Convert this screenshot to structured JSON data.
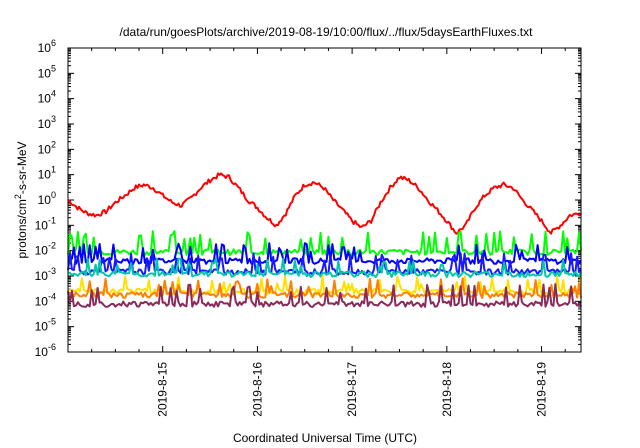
{
  "chart_data": {
    "type": "line",
    "title": "/data/run/goesPlots/archive/2019-08-19/10:00/flux/../flux/5daysEarthFluxes.txt",
    "xlabel": "Coordinated Universal Time (UTC)",
    "ylabel_parts": [
      "protons/cm",
      "2",
      "-s-sr-MeV"
    ],
    "y_scale": "log",
    "ylim": [
      1e-06,
      1000000
    ],
    "y_ticks": [
      {
        "exp": "-6"
      },
      {
        "exp": "-5"
      },
      {
        "exp": "-4"
      },
      {
        "exp": "-3"
      },
      {
        "exp": "-2"
      },
      {
        "exp": "-1"
      },
      {
        "exp": "0"
      },
      {
        "exp": "1"
      },
      {
        "exp": "2"
      },
      {
        "exp": "3"
      },
      {
        "exp": "4"
      },
      {
        "exp": "5"
      },
      {
        "exp": "6"
      }
    ],
    "y_tick_base": "10",
    "xlim": [
      "2019-08-14 00:00",
      "2019-08-19 10:00"
    ],
    "x_ticks": [
      "2019-8-15",
      "2019-8-16",
      "2019-8-17",
      "2019-8-18",
      "2019-8-19"
    ],
    "grid": false,
    "legend": "none",
    "series": [
      {
        "color": "#ff0000",
        "x_days": [
          14.0,
          14.1,
          14.2,
          14.3,
          14.4,
          14.5,
          14.6,
          14.7,
          14.8,
          14.9,
          15.0,
          15.1,
          15.2,
          15.3,
          15.4,
          15.5,
          15.6,
          15.7,
          15.8,
          15.9,
          16.0,
          16.1,
          16.2,
          16.3,
          16.4,
          16.5,
          16.6,
          16.7,
          16.8,
          16.9,
          17.0,
          17.1,
          17.2,
          17.3,
          17.4,
          17.5,
          17.6,
          17.7,
          17.8,
          17.9,
          18.0,
          18.1,
          18.2,
          18.3,
          18.4,
          18.5,
          18.6,
          18.7,
          18.8,
          18.9,
          19.0,
          19.1,
          19.2,
          19.3,
          19.42
        ],
        "values": [
          1.0,
          0.5,
          0.3,
          0.25,
          0.35,
          0.8,
          1.5,
          3,
          4,
          3,
          1.5,
          0.8,
          0.6,
          1.2,
          3,
          6,
          10,
          8,
          3,
          1,
          0.5,
          0.2,
          0.1,
          0.3,
          1.5,
          4,
          5,
          3,
          1,
          0.4,
          0.15,
          0.08,
          0.15,
          0.8,
          3,
          8,
          6,
          3,
          1,
          0.4,
          0.15,
          0.05,
          0.1,
          0.5,
          1.5,
          3,
          4,
          3,
          1,
          0.4,
          0.15,
          0.05,
          0.1,
          0.25,
          0.3
        ]
      },
      {
        "color": "#00ff00",
        "base": 0.009,
        "spike": 0.06
      },
      {
        "color": "#0000ff",
        "base": 0.004,
        "spike": 0.02
      },
      {
        "color": "#1a1aff",
        "base": 0.0015,
        "spike": 0.008
      },
      {
        "color": "#00c8a8",
        "base": 0.0012,
        "spike": 0.005
      },
      {
        "color": "#ffe000",
        "base": 0.00025,
        "spike": 0.001
      },
      {
        "color": "#ff8000",
        "base": 0.00018,
        "spike": 0.0008
      },
      {
        "color": "#8a2a5a",
        "base": 8e-05,
        "spike": 0.0005
      }
    ]
  }
}
